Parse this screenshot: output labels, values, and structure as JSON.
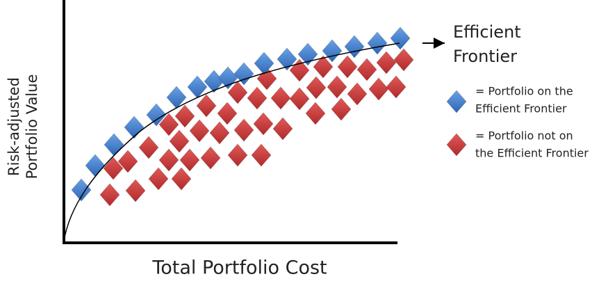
{
  "y_axis_label": [
    "Risk-adjusted",
    "Portfolio Value"
  ],
  "x_axis_label": "Total Portfolio Cost",
  "annotation": [
    "Efficient",
    "Frontier"
  ],
  "legend": [
    {
      "label": [
        "= Portfolio on the",
        "Efficient Frontier"
      ]
    },
    {
      "label": [
        "= Portfolio not on",
        "the Efficient Frontier"
      ]
    }
  ]
}
